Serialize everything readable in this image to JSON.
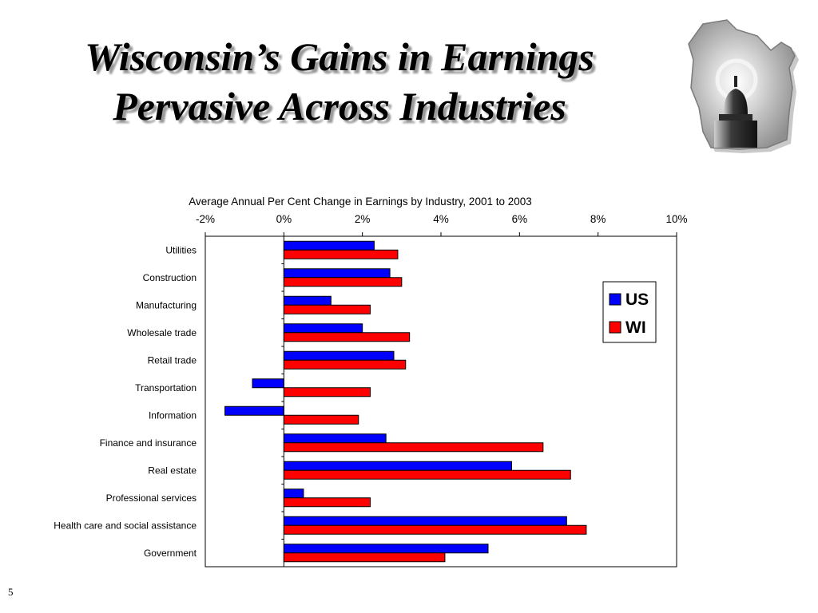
{
  "slide": {
    "title_line1": "Wisconsin’s Gains in Earnings",
    "title_line2": "Pervasive Across Industries",
    "page_number": "5",
    "emblem": "wisconsin-capitol-dome-logo"
  },
  "chart_data": {
    "type": "bar",
    "orientation": "horizontal",
    "title": "Average Annual Per Cent Change in Earnings by Industry, 2001 to 2003",
    "xlabel": "",
    "ylabel": "",
    "xlim": [
      -2,
      10
    ],
    "x_ticks": [
      -2,
      0,
      2,
      4,
      6,
      8,
      10
    ],
    "x_tick_labels": [
      "-2%",
      "0%",
      "2%",
      "4%",
      "6%",
      "8%",
      "10%"
    ],
    "x_axis_position": "top",
    "grid": false,
    "legend_position": "right",
    "categories": [
      "Utilities",
      "Construction",
      "Manufacturing",
      "Wholesale trade",
      "Retail trade",
      "Transportation",
      "Information",
      "Finance and insurance",
      "Real estate",
      "Professional services",
      "Health care and social assistance",
      "Government"
    ],
    "series": [
      {
        "name": "US",
        "color": "#0000ff",
        "values": [
          2.3,
          2.7,
          1.2,
          2.0,
          2.8,
          -0.8,
          -1.5,
          2.6,
          5.8,
          0.5,
          7.2,
          5.2
        ]
      },
      {
        "name": "WI",
        "color": "#ff0000",
        "values": [
          2.9,
          3.0,
          2.2,
          3.2,
          3.1,
          2.2,
          1.9,
          6.6,
          7.3,
          2.2,
          7.7,
          4.1
        ]
      }
    ]
  }
}
